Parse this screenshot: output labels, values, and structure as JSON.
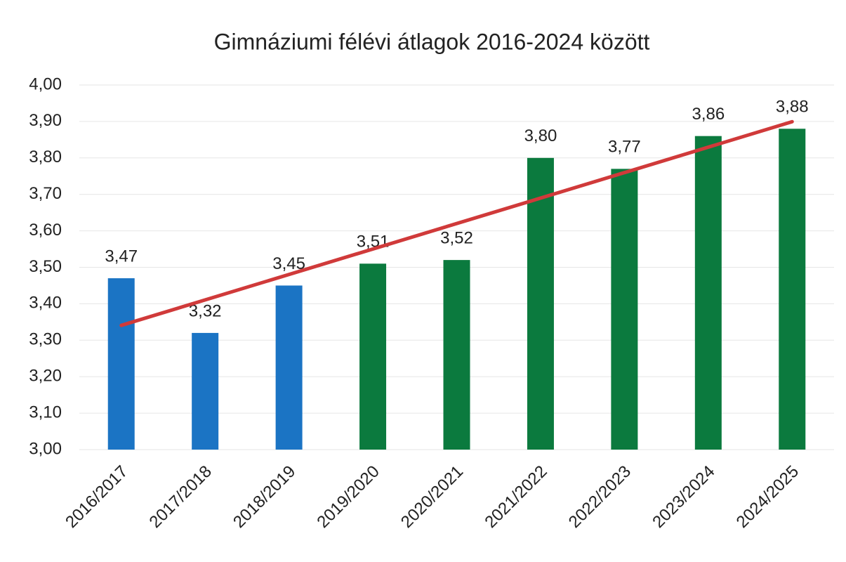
{
  "chart_data": {
    "type": "bar",
    "title": "Gimnáziumi félévi átlagok 2016-2024 között",
    "categories": [
      "2016/2017",
      "2017/2018",
      "2018/2019",
      "2019/2020",
      "2020/2021",
      "2021/2022",
      "2022/2023",
      "2023/2024",
      "2024/2025"
    ],
    "values": [
      3.47,
      3.32,
      3.45,
      3.51,
      3.52,
      3.8,
      3.77,
      3.86,
      3.88
    ],
    "value_labels": [
      "3,47",
      "3,32",
      "3,45",
      "3,51",
      "3,52",
      "3,80",
      "3,77",
      "3,86",
      "3,88"
    ],
    "colors": [
      "#1b74c4",
      "#1b74c4",
      "#1b74c4",
      "#0b7a3e",
      "#0b7a3e",
      "#0b7a3e",
      "#0b7a3e",
      "#0b7a3e",
      "#0b7a3e"
    ],
    "ylim": [
      3.0,
      4.0
    ],
    "yticks": [
      {
        "value": 3.0,
        "label": "3,00"
      },
      {
        "value": 3.1,
        "label": "3,10"
      },
      {
        "value": 3.2,
        "label": "3,20"
      },
      {
        "value": 3.3,
        "label": "3,30"
      },
      {
        "value": 3.4,
        "label": "3,40"
      },
      {
        "value": 3.5,
        "label": "3,50"
      },
      {
        "value": 3.6,
        "label": "3,60"
      },
      {
        "value": 3.7,
        "label": "3,70"
      },
      {
        "value": 3.8,
        "label": "3,80"
      },
      {
        "value": 3.9,
        "label": "3,90"
      },
      {
        "value": 4.0,
        "label": "4,00"
      }
    ],
    "grid": true,
    "trendline": {
      "type": "linear",
      "color": "#d03a3a"
    }
  }
}
